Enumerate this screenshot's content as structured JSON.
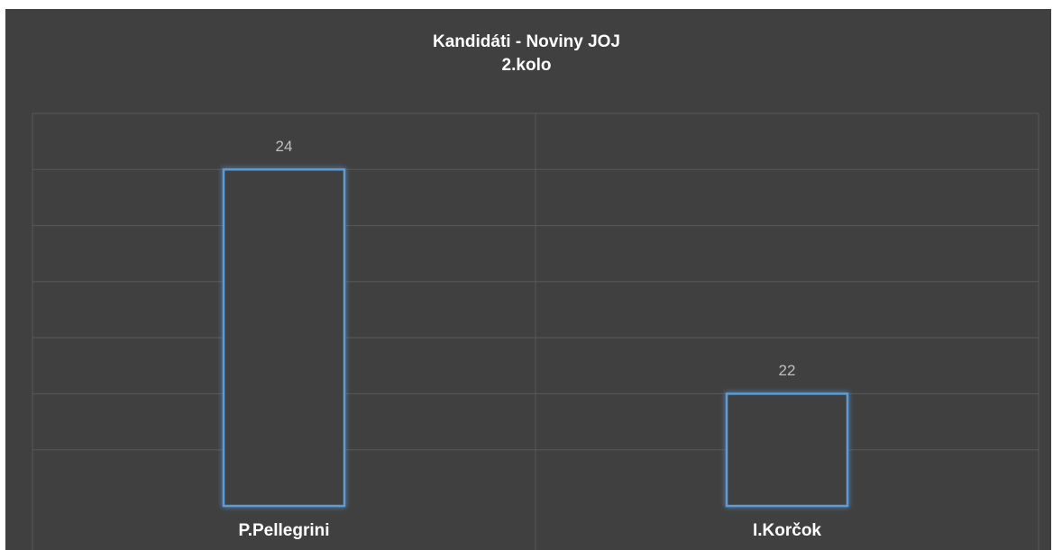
{
  "chart_data": {
    "type": "bar",
    "title": "Kandidáti - Noviny JOJ",
    "subtitle": "2.kolo",
    "categories": [
      "P.Pellegrini",
      "I.Korčok"
    ],
    "values": [
      24,
      22
    ],
    "color": "#5b9bd5",
    "ylim": [
      21,
      24.5
    ],
    "yticks": [
      21.5,
      22,
      22.5,
      23,
      23.5,
      24,
      24.5
    ],
    "grid": true
  }
}
